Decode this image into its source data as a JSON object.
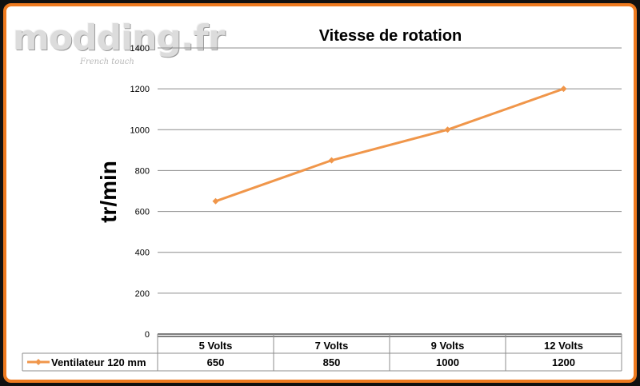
{
  "watermark": {
    "logo_text": "modding.fr",
    "tagline": "French touch"
  },
  "chart_data": {
    "type": "line",
    "title": "Vitesse de rotation",
    "ylabel": "tr/min",
    "xlabel": "",
    "categories": [
      "5 Volts",
      "7 Volts",
      "9 Volts",
      "12 Volts"
    ],
    "series": [
      {
        "name": "Ventilateur 120 mm",
        "values": [
          650,
          850,
          1000,
          1200
        ],
        "color": "#f0964a"
      }
    ],
    "ylim": [
      0,
      1400
    ],
    "yticks": [
      "0",
      "200",
      "400",
      "600",
      "800",
      "1000",
      "1200",
      "1400"
    ],
    "grid": true,
    "data_table": true,
    "table_values": [
      "650",
      "850",
      "1000",
      "1200"
    ]
  }
}
